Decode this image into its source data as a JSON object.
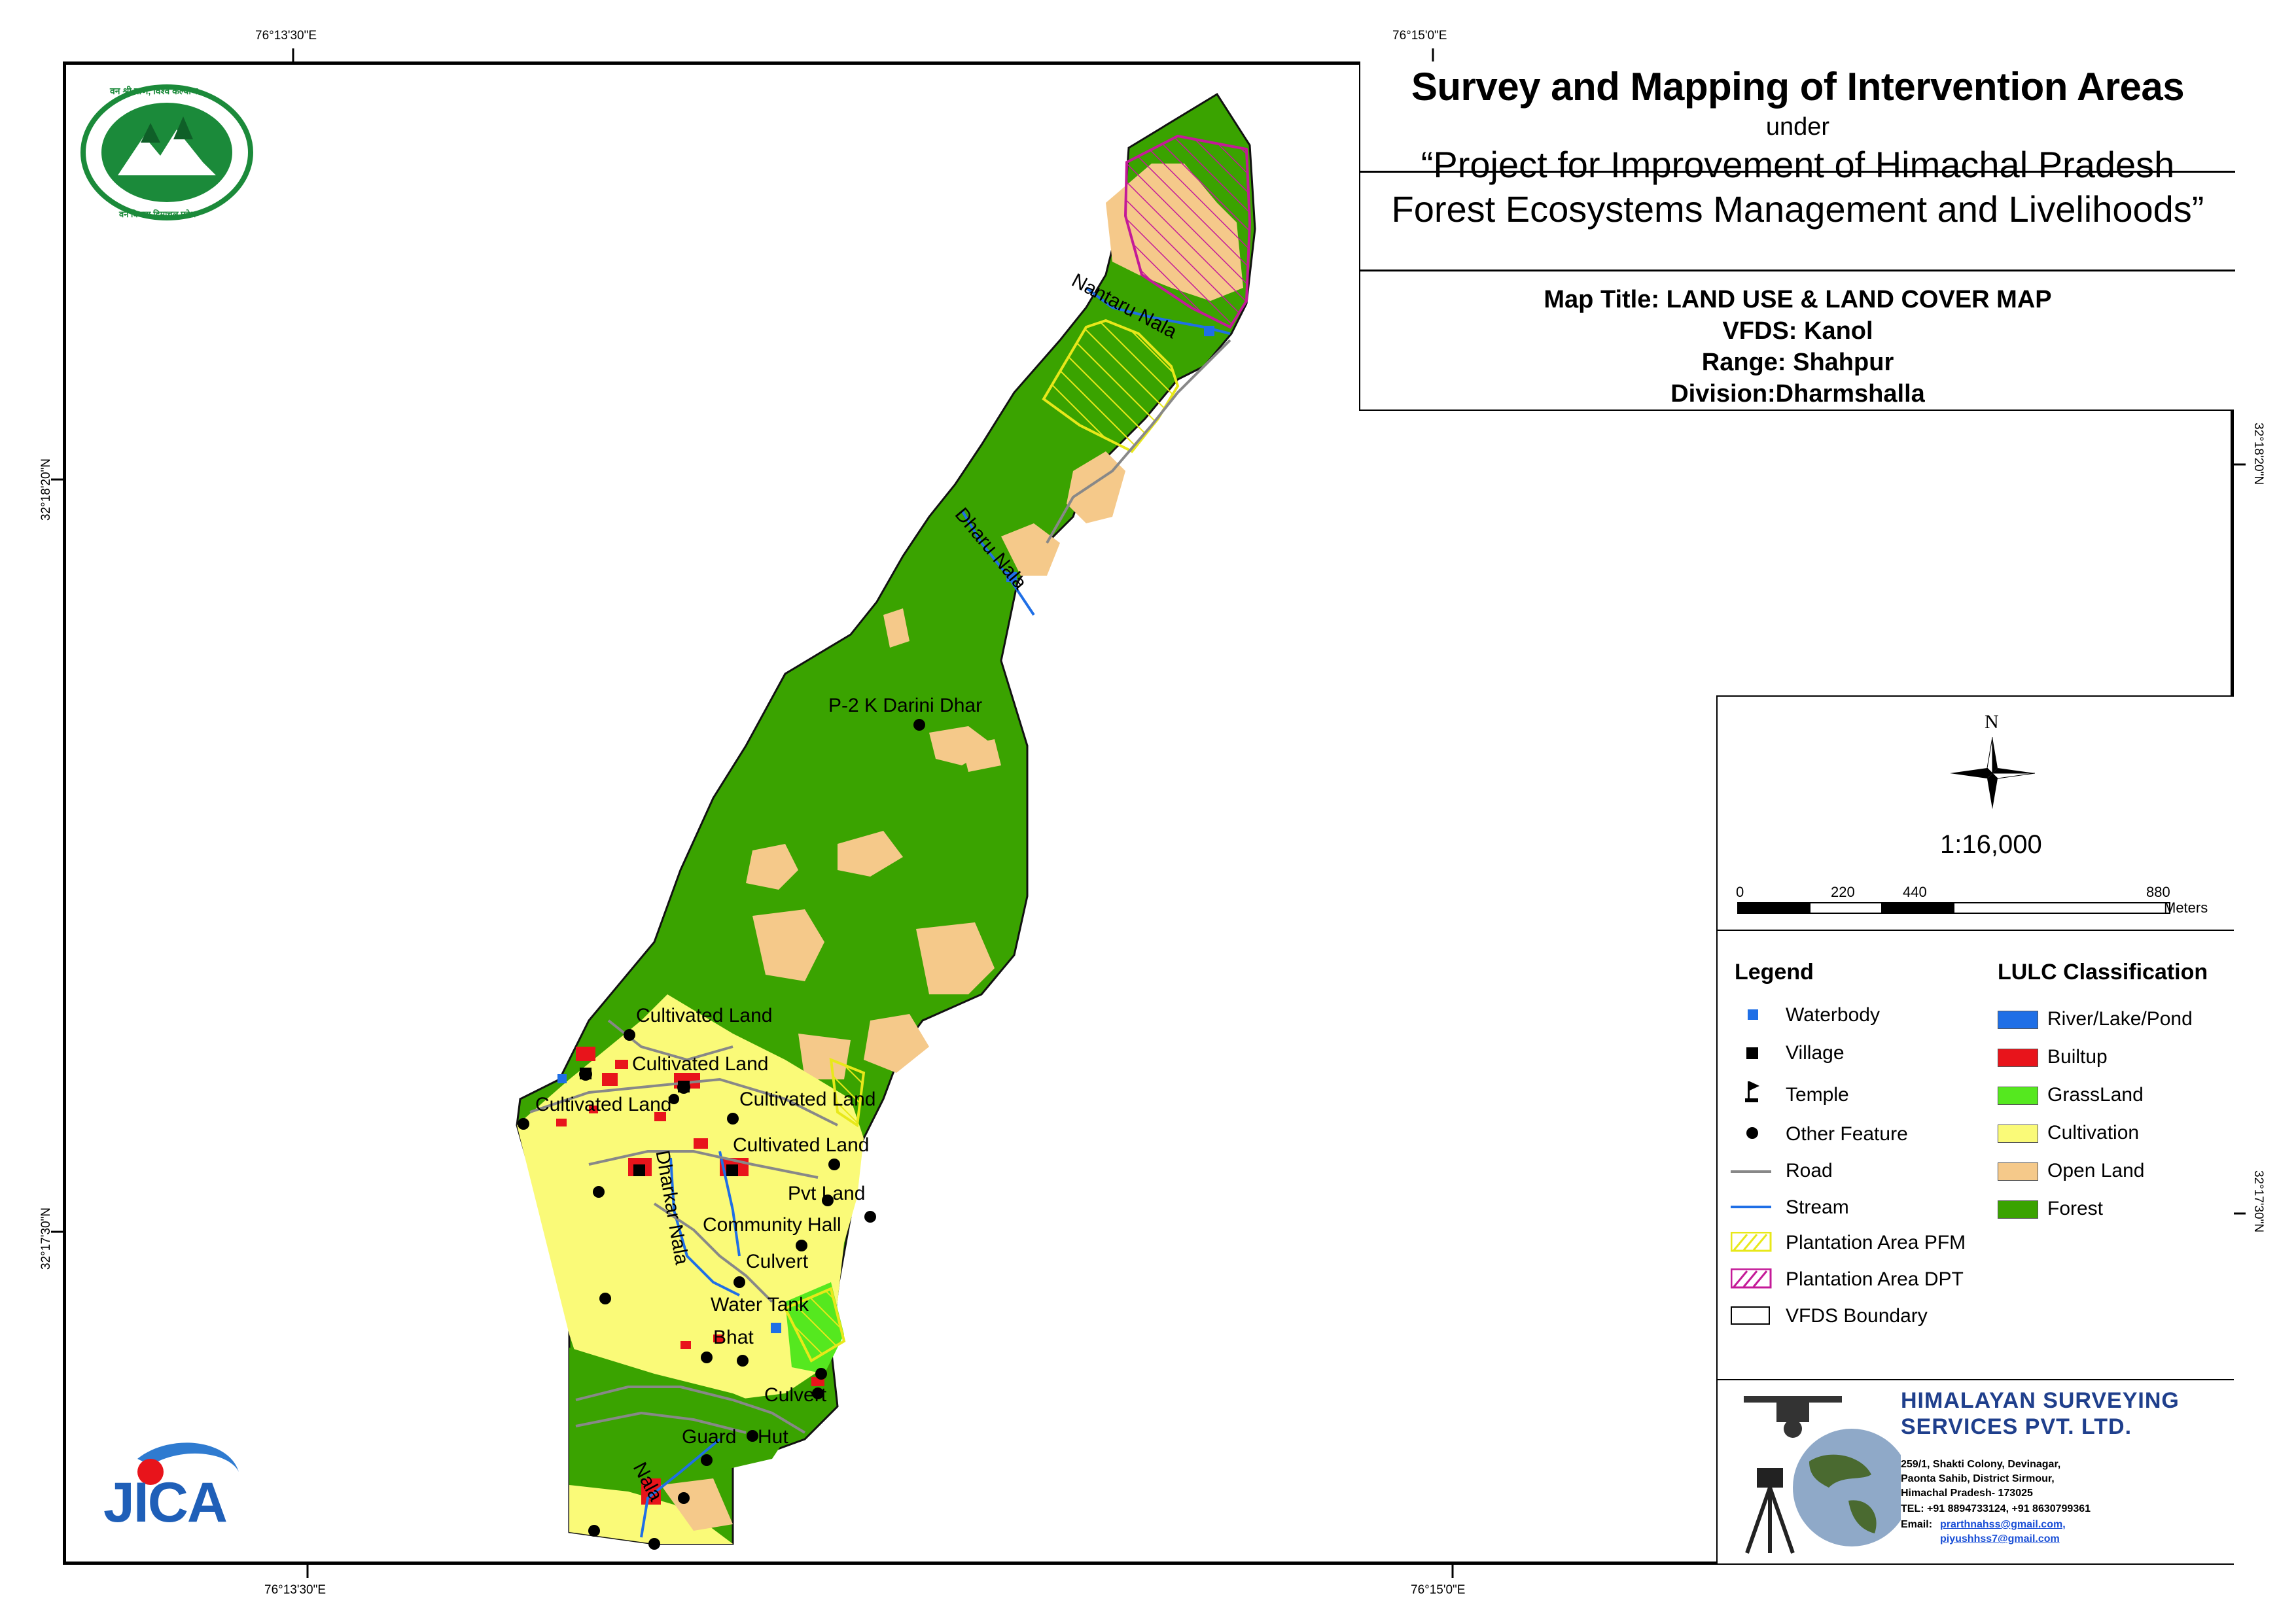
{
  "coords": {
    "top": [
      "76°13'30\"E",
      "76°15'0\"E"
    ],
    "bottom": [
      "76°13'30\"E",
      "76°15'0\"E"
    ],
    "left": [
      "32°18'20\"N",
      "32°17'30\"N"
    ],
    "right": [
      "32°18'20\"N",
      "32°17'30\"N"
    ]
  },
  "title": {
    "main": "Survey and Mapping of Intervention Areas",
    "under": "under",
    "project_line1": "“Project for Improvement of Himachal Pradesh",
    "project_line2": "Forest Ecosystems Management and Livelihoods”",
    "map_title": "Map Title: LAND USE & LAND COVER MAP",
    "vfds": "VFDS: Kanol",
    "range": "Range: Shahpur",
    "division": "Division:Dharmshalla"
  },
  "north": {
    "letter": "N",
    "scale": "1:16,000"
  },
  "scalebar": {
    "ticks": [
      "0",
      "220",
      "440",
      "880"
    ],
    "unit": "Meters"
  },
  "legend": {
    "heading": "Legend",
    "items": [
      "Waterbody",
      "Village",
      "Temple",
      "Other Feature",
      "Road",
      "Stream",
      "Plantation Area PFM",
      "Plantation Area DPT",
      "VFDS Boundary"
    ]
  },
  "lulc": {
    "heading": "LULC Classification",
    "items": [
      {
        "label": "River/Lake/Pond",
        "color": "#1f6fe6"
      },
      {
        "label": "Builtup",
        "color": "#e8141b"
      },
      {
        "label": "GrassLand",
        "color": "#55e81f"
      },
      {
        "label": "Cultivation",
        "color": "#fafa78"
      },
      {
        "label": "Open Land",
        "color": "#f5c98a"
      },
      {
        "label": "Forest",
        "color": "#3aa300"
      }
    ]
  },
  "map_labels": {
    "nantaru": "Nantaru Nala",
    "dharu": "Dharu Nala",
    "darini": "P-2 K Darini Dhar",
    "cult1": "Cultivated Land",
    "cult2": "Cultivated Land",
    "cult3": "Cultivated Land",
    "cult4": "Cultivated Land",
    "cult5": "Cultivated Land",
    "dharkar": "Dharkar Nala",
    "pvt": "Pvt Land",
    "community": "Community Hall",
    "culvert1": "Culvert",
    "watertank": "Water Tank",
    "bhat": "Bhat",
    "culvert2": "Culvert",
    "guard": "Guard",
    "hut": "Hut",
    "nala": "Nala"
  },
  "logos": {
    "forest_top": "वन श्री त्राण, विश्व कल्याण",
    "forest_bottom": "वन विभाग हिमाचल प्रदेश",
    "jica": "JICA"
  },
  "company": {
    "name1": "HIMALAYAN SURVEYING",
    "name2": "SERVICES PVT. LTD.",
    "addr1": "259/1, Shakti Colony, Devinagar,",
    "addr2": "Paonta Sahib, District Sirmour,",
    "addr3": "Himachal Pradesh- 173025",
    "tel": "TEL: +91 8894733124, +91 8630799361",
    "email_label": "Email:",
    "email1": "prarthnahss@gmail.com,",
    "email2": "piyushhss7@gmail.com"
  }
}
